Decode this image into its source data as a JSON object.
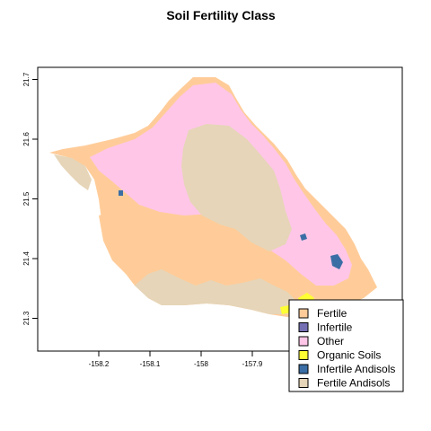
{
  "title": "Soil Fertility Class",
  "x_ticks": [
    {
      "value": -158.2,
      "label": "-158.2"
    },
    {
      "value": -158.1,
      "label": "-158.1"
    },
    {
      "value": -158.0,
      "label": "-158"
    },
    {
      "value": -157.9,
      "label": "-157.9"
    }
  ],
  "y_ticks": [
    {
      "value": 21.3,
      "label": "21.3"
    },
    {
      "value": 21.4,
      "label": "21.4"
    },
    {
      "value": 21.5,
      "label": "21.5"
    },
    {
      "value": 21.6,
      "label": "21.6"
    },
    {
      "value": 21.7,
      "label": "21.7"
    }
  ],
  "legend": {
    "position": "bottom-right",
    "items": [
      {
        "label": "Fertile",
        "color": "#ffcc99"
      },
      {
        "label": "Infertile",
        "color": "#7570b3"
      },
      {
        "label": "Other",
        "color": "#ffc6e8"
      },
      {
        "label": "Organic Soils",
        "color": "#ffff33"
      },
      {
        "label": "Infertile Andisols",
        "color": "#3a6ea5"
      },
      {
        "label": "Fertile Andisols",
        "color": "#e6d5b8"
      }
    ]
  },
  "colors": {
    "fertile": "#ffcc99",
    "other": "#ffc6e8",
    "fertile_andisols": "#e6d5b8",
    "organic": "#ffff33",
    "infertile_andisols": "#3a6ea5",
    "infertile": "#7570b3"
  }
}
